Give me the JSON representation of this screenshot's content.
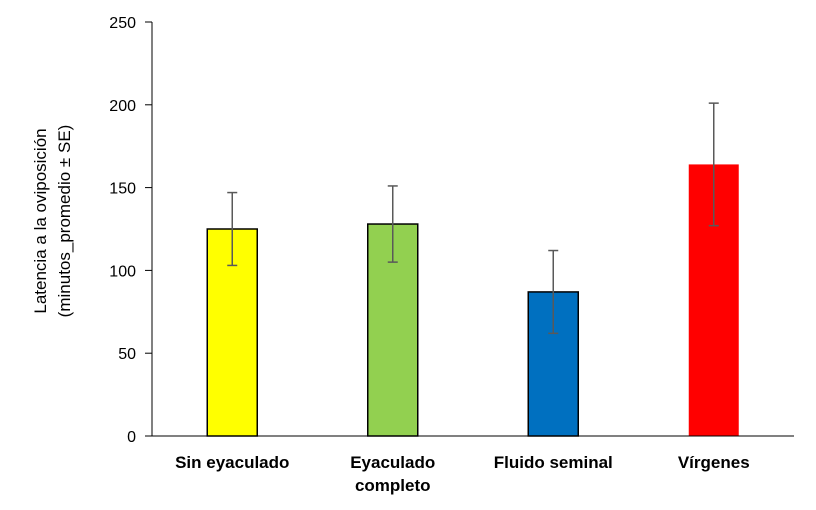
{
  "chart_data": {
    "type": "bar",
    "title": "",
    "xlabel": "",
    "ylabel": [
      "Latencia a la oviposición",
      "(minutos_promedio ± SE)"
    ],
    "ylim": [
      0,
      250
    ],
    "yticks": [
      0,
      50,
      100,
      150,
      200,
      250
    ],
    "categories": [
      [
        "Sin eyaculado"
      ],
      [
        "Eyaculado",
        "completo"
      ],
      [
        "Fluido seminal"
      ],
      [
        "Vírgenes"
      ]
    ],
    "values": [
      125,
      128,
      87,
      164
    ],
    "errors": [
      22,
      23,
      25,
      37
    ],
    "colors": [
      "#ffff00",
      "#92d050",
      "#0070c0",
      "#ff0000"
    ],
    "outlined": [
      true,
      true,
      true,
      false
    ],
    "grid": false,
    "legend": "none"
  }
}
